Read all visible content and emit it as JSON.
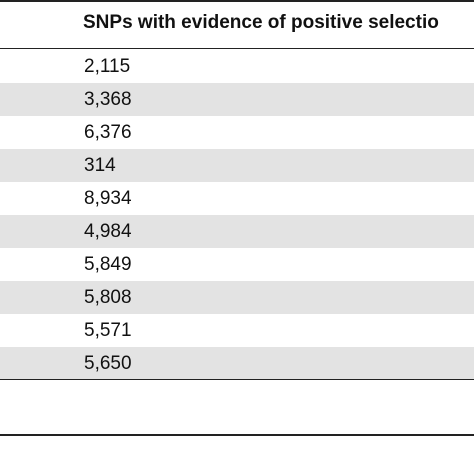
{
  "table": {
    "header": "SNPs with evidence of positive selectio",
    "rows": [
      {
        "value": "2,115",
        "shaded": false
      },
      {
        "value": "3,368",
        "shaded": true
      },
      {
        "value": "6,376",
        "shaded": false
      },
      {
        "value": "314",
        "shaded": true
      },
      {
        "value": "8,934",
        "shaded": false
      },
      {
        "value": "4,984",
        "shaded": true
      },
      {
        "value": "5,849",
        "shaded": false
      },
      {
        "value": "5,808",
        "shaded": true
      },
      {
        "value": "5,571",
        "shaded": false
      },
      {
        "value": "5,650",
        "shaded": true
      }
    ]
  },
  "colors": {
    "shade": "#e3e3e3",
    "rule": "#222222",
    "text": "#111111"
  }
}
